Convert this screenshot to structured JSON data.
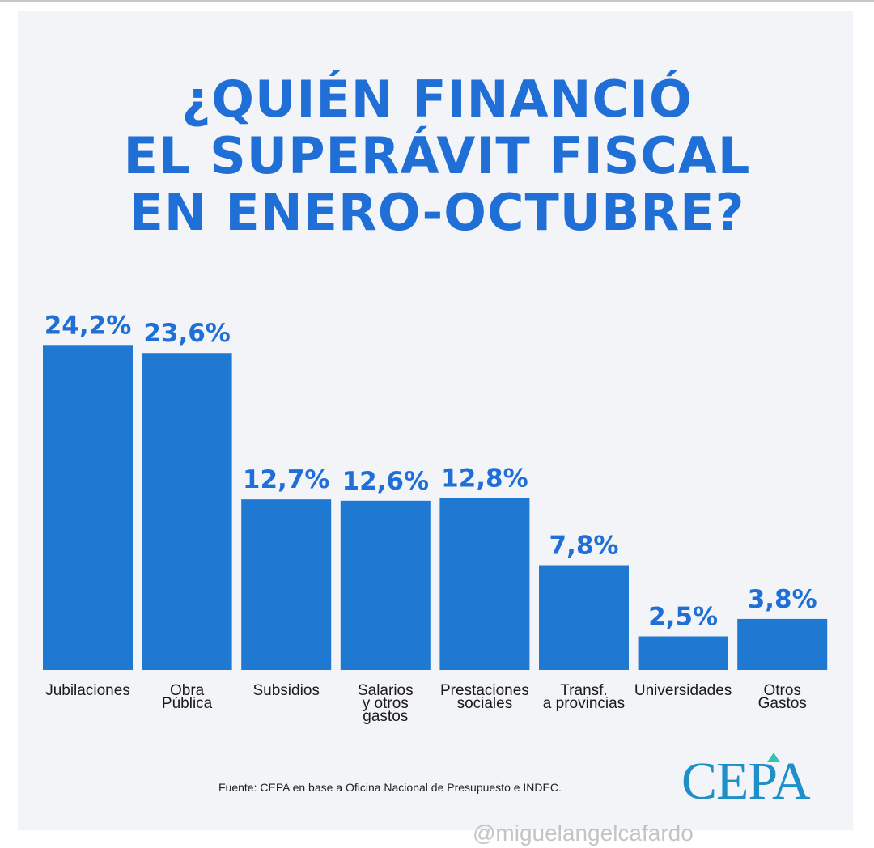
{
  "title_lines": [
    "¿QUIÉN FINANCIÓ",
    "EL SUPERÁVIT FISCAL",
    "EN ENERO-OCTUBRE?"
  ],
  "chart_data": {
    "type": "bar",
    "categories": [
      [
        "Jubilaciones"
      ],
      [
        "Obra",
        "Pública"
      ],
      [
        "Subsidios"
      ],
      [
        "Salarios",
        "y otros",
        "gastos"
      ],
      [
        "Prestaciones",
        "sociales"
      ],
      [
        "Transf.",
        "a provincias"
      ],
      [
        "Universidades"
      ],
      [
        "Otros",
        "Gastos"
      ]
    ],
    "values": [
      24.2,
      23.6,
      12.7,
      12.6,
      12.8,
      7.8,
      2.5,
      3.8
    ],
    "value_labels": [
      "24,2%",
      "23,6%",
      "12,7%",
      "12,6%",
      "12,8%",
      "7,8%",
      "2,5%",
      "3,8%"
    ],
    "bar_color": "#1f78d1",
    "value_color": "#1f6fd6",
    "grid": false,
    "legend": false
  },
  "source": "Fuente: CEPA en base a Oficina Nacional de Presupuesto e INDEC.",
  "logo_text": "CEPA",
  "watermark": "@miguelangelcafardo"
}
